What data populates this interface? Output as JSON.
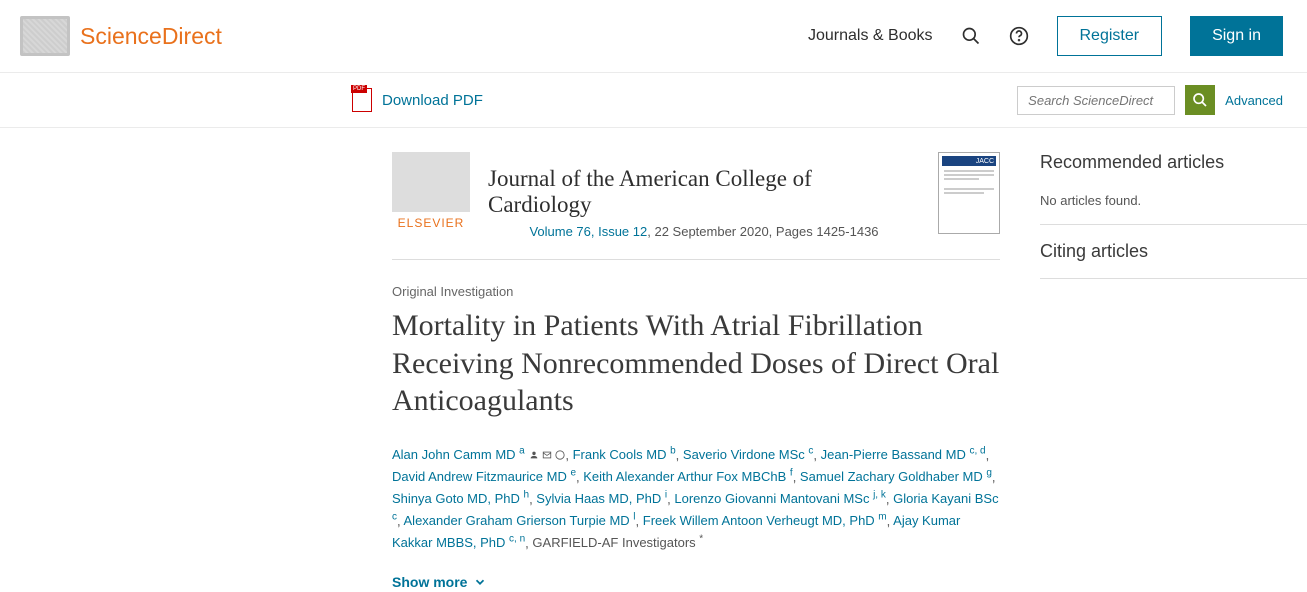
{
  "header": {
    "brand": "ScienceDirect",
    "nav_journals": "Journals & Books",
    "register": "Register",
    "signin": "Sign in"
  },
  "toolbar": {
    "download_pdf": "Download PDF",
    "search_placeholder": "Search ScienceDirect",
    "advanced": "Advanced"
  },
  "journal": {
    "elsevier": "ELSEVIER",
    "title": "Journal of the American College of Cardiology",
    "issue_link": "Volume 76, Issue 12",
    "issue_rest": ", 22 September 2020, Pages 1425-1436",
    "cover_tag": "JACC"
  },
  "article": {
    "type": "Original Investigation",
    "title": "Mortality in Patients With Atrial Fibrillation Receiving Nonrecommended Doses of Direct Oral Anticoagulants",
    "show_more": "Show more"
  },
  "authors": [
    {
      "name": "Alan John Camm MD",
      "aff": "a",
      "icons": true
    },
    {
      "name": "Frank Cools MD",
      "aff": "b"
    },
    {
      "name": "Saverio Virdone MSc",
      "aff": "c"
    },
    {
      "name": "Jean-Pierre Bassand MD",
      "aff": "c, d"
    },
    {
      "name": "David Andrew Fitzmaurice MD",
      "aff": "e"
    },
    {
      "name": "Keith Alexander Arthur Fox MBChB",
      "aff": "f"
    },
    {
      "name": "Samuel Zachary Goldhaber MD",
      "aff": "g"
    },
    {
      "name": "Shinya Goto MD, PhD",
      "aff": "h"
    },
    {
      "name": "Sylvia Haas MD, PhD",
      "aff": "i"
    },
    {
      "name": "Lorenzo Giovanni Mantovani MSc",
      "aff": "j, k"
    },
    {
      "name": "Gloria Kayani BSc",
      "aff": "c"
    },
    {
      "name": "Alexander Graham Grierson Turpie MD",
      "aff": "l"
    },
    {
      "name": "Freek Willem Antoon Verheugt MD, PhD",
      "aff": "m"
    },
    {
      "name": "Ajay Kumar Kakkar MBBS, PhD",
      "aff": "c, n"
    }
  ],
  "group_author": "GARFIELD-AF Investigators",
  "group_aff": "*",
  "sidebar": {
    "recommended_title": "Recommended articles",
    "recommended_body": "No articles found.",
    "citing_title": "Citing articles"
  }
}
